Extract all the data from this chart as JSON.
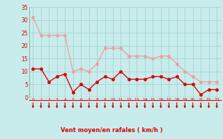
{
  "hours": [
    0,
    1,
    2,
    3,
    4,
    5,
    6,
    7,
    8,
    9,
    10,
    11,
    12,
    13,
    14,
    15,
    16,
    17,
    18,
    19,
    20,
    21,
    22,
    23
  ],
  "wind_avg": [
    11,
    11,
    6,
    8,
    9,
    2,
    5,
    3,
    6,
    8,
    7,
    10,
    7,
    7,
    7,
    8,
    8,
    7,
    8,
    5,
    5,
    1,
    3,
    3
  ],
  "wind_gust": [
    31,
    24,
    24,
    24,
    24,
    10,
    11,
    10,
    13,
    19,
    19,
    19,
    16,
    16,
    16,
    15,
    16,
    16,
    13,
    10,
    8,
    6,
    6,
    6
  ],
  "avg_color": "#dd0000",
  "gust_color": "#f0a0a0",
  "bg_color": "#c8ecec",
  "grid_color": "#aad4d4",
  "xlabel": "Vent moyen/en rafales ( km/h )",
  "xlabel_color": "#dd0000",
  "tick_color": "#dd0000",
  "ylim": [
    0,
    35
  ],
  "yticks": [
    0,
    5,
    10,
    15,
    20,
    25,
    30,
    35
  ],
  "arrow_color": "#dd0000",
  "line_width": 1.0,
  "marker_size": 2.5
}
